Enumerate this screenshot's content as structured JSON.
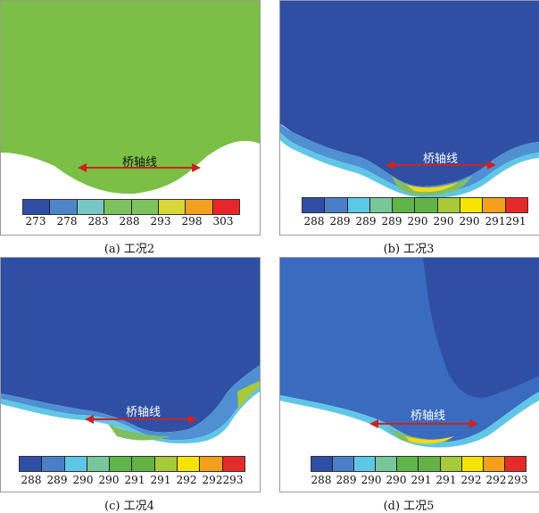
{
  "axis_label": "桥轴线",
  "arrow_color": "#cc2222",
  "panels": [
    {
      "caption": "(a) 工况2",
      "colorbar": {
        "colors": [
          "#2f4fa5",
          "#4d86c8",
          "#78c7c4",
          "#7ec260",
          "#7ec260",
          "#d8d83a",
          "#f2a01f",
          "#e8262a"
        ],
        "labels": [
          "273",
          "278",
          "283",
          "288",
          "293",
          "298",
          "303"
        ]
      }
    },
    {
      "caption": "(b) 工况3",
      "colorbar": {
        "colors": [
          "#2f4fa5",
          "#4a7ec9",
          "#5cc8e8",
          "#77c79a",
          "#5fb548",
          "#63b246",
          "#a7c93a",
          "#f4e400",
          "#f5a01c",
          "#e52a2a"
        ],
        "labels": [
          "288",
          "289",
          "289",
          "289",
          "290",
          "290",
          "290",
          "291",
          "291"
        ]
      }
    },
    {
      "caption": "(c) 工况4",
      "colorbar": {
        "colors": [
          "#2f4fa5",
          "#4a7ec9",
          "#5cc8e8",
          "#77c79a",
          "#5fb548",
          "#63b246",
          "#a7c93a",
          "#f4e400",
          "#f5a01c",
          "#e52a2a"
        ],
        "labels": [
          "288",
          "289",
          "290",
          "290",
          "291",
          "291",
          "292",
          "292",
          "293"
        ]
      }
    },
    {
      "caption": "(d) 工况5",
      "colorbar": {
        "colors": [
          "#2f4fa5",
          "#4a7ec9",
          "#5cc8e8",
          "#77c79a",
          "#5fb548",
          "#63b246",
          "#a7c93a",
          "#f4e400",
          "#f5a01c",
          "#e52a2a"
        ],
        "labels": [
          "288",
          "289",
          "290",
          "290",
          "291",
          "291",
          "292",
          "292",
          "293"
        ]
      }
    }
  ]
}
